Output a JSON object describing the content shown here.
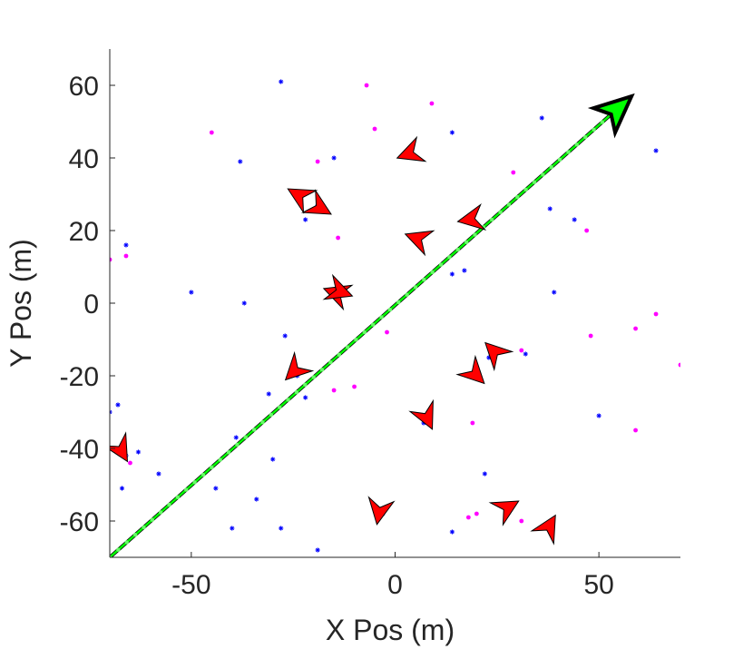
{
  "chart_data": {
    "type": "scatter",
    "title": "",
    "xlabel": "X Pos (m)",
    "ylabel": "Y Pos (m)",
    "xlim": [
      -70,
      70
    ],
    "ylim": [
      -70,
      70
    ],
    "xticks": [
      -50,
      0,
      50
    ],
    "yticks": [
      -60,
      -40,
      -20,
      0,
      20,
      40,
      60
    ],
    "xtick_labels": [
      "-50",
      "0",
      "50"
    ],
    "ytick_labels": [
      "-60",
      "-40",
      "-20",
      "0",
      "20",
      "40",
      "60"
    ],
    "grid": false,
    "legend": "none",
    "colors": {
      "blue_markers": "#0000ff",
      "magenta_markers": "#ff00ff",
      "arrowheads": "#ff0000",
      "trajectory": "#00ff00",
      "reference_path": "#000000"
    },
    "series": [
      {
        "marker": "asterisk",
        "color": "#0000ff",
        "points": [
          [
            -28,
            61
          ],
          [
            -15,
            40
          ],
          [
            -38,
            39
          ],
          [
            -66,
            16
          ],
          [
            -50,
            3
          ],
          [
            -37,
            0
          ],
          [
            -27,
            -9
          ],
          [
            -31,
            -25
          ],
          [
            -22,
            -26
          ],
          [
            -68,
            -28
          ],
          [
            -70,
            -30
          ],
          [
            -63,
            -41
          ],
          [
            -58,
            -47
          ],
          [
            -44,
            -51
          ],
          [
            -67,
            -51
          ],
          [
            -34,
            -54
          ],
          [
            -40,
            -62
          ],
          [
            -28,
            -62
          ],
          [
            -19,
            -68
          ],
          [
            -39,
            -37
          ],
          [
            -30,
            -43
          ],
          [
            14,
            47
          ],
          [
            36,
            51
          ],
          [
            64,
            42
          ],
          [
            38,
            26
          ],
          [
            44,
            23
          ],
          [
            39,
            3
          ],
          [
            17,
            9
          ],
          [
            14,
            8
          ],
          [
            32,
            -14
          ],
          [
            22,
            -47
          ],
          [
            14,
            -63
          ],
          [
            50,
            -31
          ],
          [
            -22,
            23
          ],
          [
            -23,
            30
          ],
          [
            -19,
            27
          ],
          [
            4,
            41
          ],
          [
            4,
            18
          ],
          [
            17,
            23
          ],
          [
            -15,
            2
          ],
          [
            -13,
            3
          ],
          [
            -24,
            -20
          ],
          [
            -66,
            -42
          ],
          [
            23,
            -15
          ],
          [
            19,
            -20
          ],
          [
            7,
            -33
          ],
          [
            -3,
            -58
          ],
          [
            27,
            -56
          ],
          [
            38,
            -62
          ]
        ]
      },
      {
        "marker": "dot",
        "color": "#ff00ff",
        "points": [
          [
            -7,
            60
          ],
          [
            9,
            55
          ],
          [
            -45,
            47
          ],
          [
            -5,
            48
          ],
          [
            -19,
            39
          ],
          [
            -14,
            18
          ],
          [
            -66,
            13
          ],
          [
            -70,
            12
          ],
          [
            29,
            36
          ],
          [
            47,
            20
          ],
          [
            -15,
            -24
          ],
          [
            -10,
            -23
          ],
          [
            -2,
            -8
          ],
          [
            31,
            -13
          ],
          [
            48,
            -9
          ],
          [
            59,
            -7
          ],
          [
            64,
            -3
          ],
          [
            70,
            -17
          ],
          [
            19,
            -33
          ],
          [
            20,
            -58
          ],
          [
            18,
            -59
          ],
          [
            31,
            -60
          ],
          [
            59,
            -35
          ],
          [
            -65,
            -44
          ]
        ]
      },
      {
        "marker": "triangle",
        "color": "#ff0000",
        "points": [
          [
            -24,
            30
          ],
          [
            -18,
            26
          ],
          [
            3,
            41
          ],
          [
            5,
            18
          ],
          [
            18,
            23
          ],
          [
            -15,
            3
          ],
          [
            -13,
            3
          ],
          [
            -25,
            -19
          ],
          [
            24,
            -13
          ],
          [
            20,
            -20
          ],
          [
            8,
            -32
          ],
          [
            -4,
            -58
          ],
          [
            28,
            -56
          ],
          [
            38,
            -61
          ],
          [
            -67,
            -41
          ]
        ]
      },
      {
        "marker": "line",
        "color": "#000000",
        "points": [
          [
            -70,
            -70
          ],
          [
            55,
            54
          ]
        ]
      },
      {
        "marker": "line",
        "color": "#00ff00",
        "points": [
          [
            -70,
            -70
          ],
          [
            55,
            54
          ]
        ]
      }
    ]
  }
}
